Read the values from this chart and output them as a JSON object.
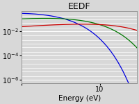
{
  "title": "EEDF",
  "xlabel": "Energy (eV)",
  "ylabel": "",
  "xlim": [
    1.0,
    30
  ],
  "ylim_log": [
    5e-07,
    0.5
  ],
  "lines": [
    {
      "color": "#0000dd",
      "Te": 1.5,
      "label": "blue"
    },
    {
      "color": "#007700",
      "Te": 4.0,
      "label": "green"
    },
    {
      "color": "#cc0000",
      "Te": 12.0,
      "label": "red"
    }
  ],
  "background_color": "#d8d8d8",
  "grid_color": "#ffffff",
  "title_fontsize": 9,
  "label_fontsize": 7.5,
  "tick_fontsize": 7
}
